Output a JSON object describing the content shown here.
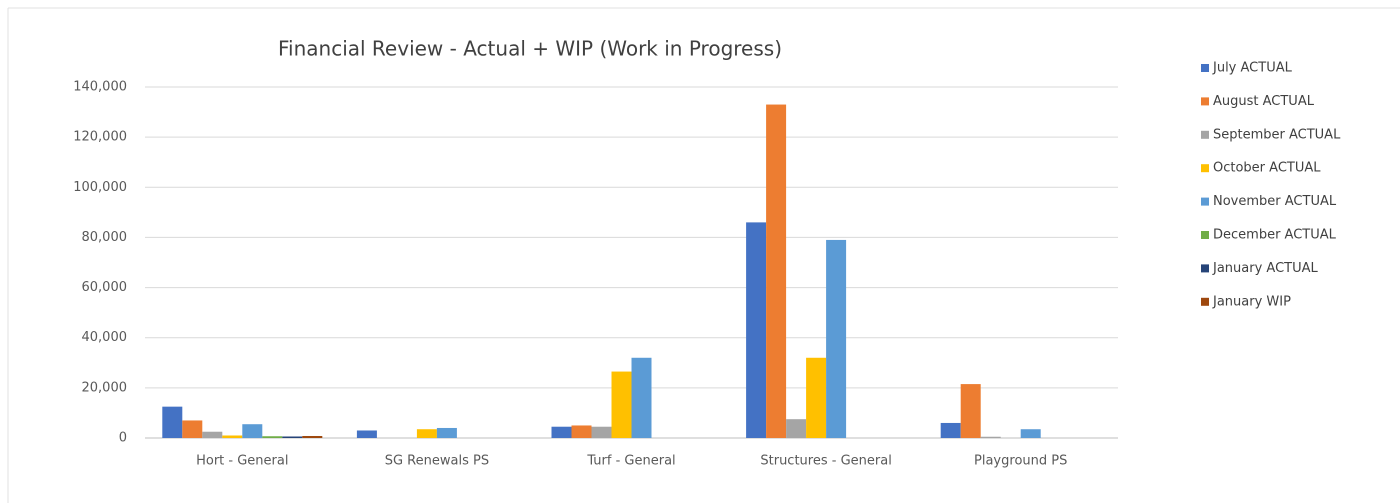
{
  "chart_data": {
    "type": "bar",
    "title": "Financial Review - Actual + WIP (Work in Progress)",
    "categories": [
      "Hort - General",
      "SG Renewals PS",
      "Turf - General",
      "Structures - General",
      "Playground PS"
    ],
    "series": [
      {
        "name": "July ACTUAL",
        "color": "#4472c4",
        "values": [
          12500,
          3000,
          4500,
          86000,
          6000
        ]
      },
      {
        "name": "August ACTUAL",
        "color": "#ed7d31",
        "values": [
          7000,
          0,
          5000,
          133000,
          21500
        ]
      },
      {
        "name": "September ACTUAL",
        "color": "#a5a5a5",
        "values": [
          2500,
          0,
          4500,
          7500,
          500
        ]
      },
      {
        "name": "October ACTUAL",
        "color": "#ffc000",
        "values": [
          1000,
          3500,
          26500,
          32000,
          0
        ]
      },
      {
        "name": "November ACTUAL",
        "color": "#5b9bd5",
        "values": [
          5500,
          4000,
          32000,
          79000,
          3500
        ]
      },
      {
        "name": "December ACTUAL",
        "color": "#70ad47",
        "values": [
          700,
          0,
          0,
          0,
          0
        ]
      },
      {
        "name": "January ACTUAL",
        "color": "#264478",
        "values": [
          600,
          0,
          0,
          0,
          0
        ]
      },
      {
        "name": "January WIP",
        "color": "#9e480e",
        "values": [
          800,
          0,
          0,
          0,
          0
        ]
      }
    ],
    "ylim": [
      0,
      140000
    ],
    "yticks": [
      0,
      {
        "value": 20000,
        "label": "20,000"
      },
      {
        "value": 40000,
        "label": "40,000"
      },
      {
        "value": 60000,
        "label": "60,000"
      },
      {
        "value": 80000,
        "label": "80,000"
      },
      {
        "value": 100000,
        "label": "100,000"
      },
      {
        "value": 120000,
        "label": "120,000"
      },
      {
        "value": 140000,
        "label": "140,000"
      }
    ],
    "grid": true,
    "legend": "right"
  }
}
